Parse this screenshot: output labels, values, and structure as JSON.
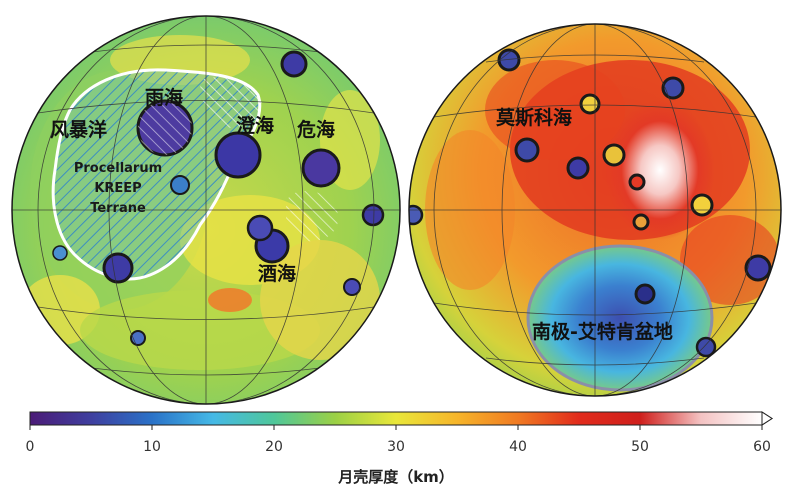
{
  "maps": {
    "nearside": {
      "labels": {
        "oceanus": "风暴洋",
        "imbrium": "雨海",
        "serenitatis": "澄海",
        "crisium": "危海",
        "nectaris": "酒海",
        "pkt_line1": "Procellarum",
        "pkt_line2": "KREEP",
        "pkt_line3": "Terrane"
      }
    },
    "farside": {
      "labels": {
        "moscoviense": "莫斯科海",
        "spa": "南极-艾特肯盆地"
      }
    }
  },
  "colorbar": {
    "ticks": [
      "0",
      "10",
      "20",
      "30",
      "40",
      "50",
      "60"
    ],
    "title": "月壳厚度（km）",
    "range": [
      0,
      60
    ],
    "colors": [
      "#4b1b77",
      "#3f3f9f",
      "#2a72c8",
      "#45b9e6",
      "#4fc79a",
      "#9bd045",
      "#e9e73a",
      "#f6b52a",
      "#f07a22",
      "#e12b1c",
      "#cf1f1c",
      "#f4c3c3",
      "#ffffff"
    ]
  }
}
